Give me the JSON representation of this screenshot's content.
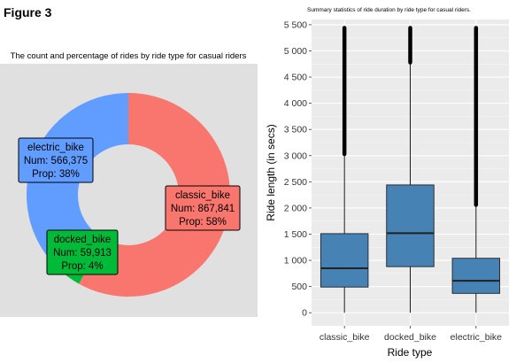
{
  "figure": {
    "title": "Figure 3"
  },
  "chart_data": [
    {
      "type": "pie",
      "style": "donut",
      "title": "The count and percentage of rides by ride type for casual riders",
      "panel_background": "#e0e0e0",
      "slices": [
        {
          "label": "classic_bike",
          "value": 867841,
          "num_text": "Num: 867,841",
          "prop_text": "Prop: 58%",
          "color": "#f8766d"
        },
        {
          "label": "docked_bike",
          "value": 59913,
          "num_text": "Num:  59,913",
          "prop_text": "Prop:  4%",
          "color": "#00ba38"
        },
        {
          "label": "electric_bike",
          "value": 566375,
          "num_text": "Num: 566,375",
          "prop_text": "Prop: 38%",
          "color": "#619cff"
        }
      ]
    },
    {
      "type": "boxplot",
      "title": "Summary statistics of ride duration by ride type for casual riders.",
      "xlabel": "Ride type",
      "ylabel": "Ride length (in secs)",
      "ylim": [
        -250,
        5600
      ],
      "yticks": [
        0,
        500,
        1000,
        1500,
        2000,
        2500,
        3000,
        3500,
        4000,
        4500,
        5000,
        5500
      ],
      "ytick_labels": [
        "0",
        "500",
        "1 000",
        "1 500",
        "2 000",
        "2 500",
        "3 000",
        "3 500",
        "4 000",
        "4 500",
        "5 000",
        "5 500"
      ],
      "grid": true,
      "panel_background": "#ebebeb",
      "box_color": "#4682b4",
      "categories": [
        "classic_bike",
        "docked_bike",
        "electric_bike"
      ],
      "boxes": [
        {
          "name": "classic_bike",
          "min": 0,
          "q1": 490,
          "median": 850,
          "q3": 1510,
          "whisker_high": 3030,
          "outlier_max": 5440
        },
        {
          "name": "docked_bike",
          "min": 0,
          "q1": 880,
          "median": 1520,
          "q3": 2440,
          "whisker_high": 4780,
          "outlier_max": 5440
        },
        {
          "name": "electric_bike",
          "min": 0,
          "q1": 370,
          "median": 610,
          "q3": 1040,
          "whisker_high": 2060,
          "outlier_max": 5440
        }
      ]
    }
  ]
}
